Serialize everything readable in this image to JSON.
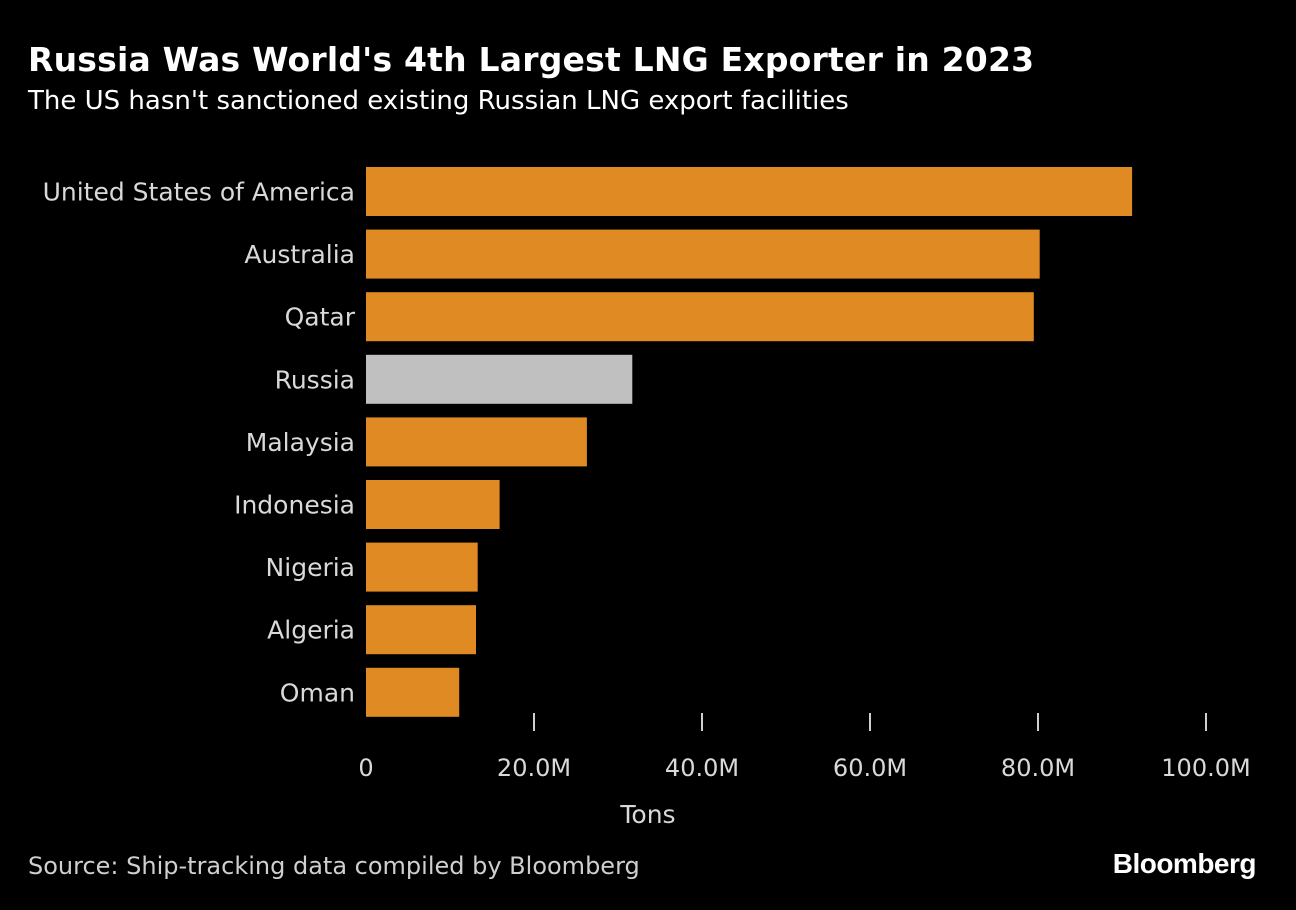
{
  "title": "Russia Was World's 4th Largest LNG Exporter in 2023",
  "subtitle": "The US hasn't sanctioned existing Russian LNG export facilities",
  "source": "Source: Ship-tracking data compiled by Bloomberg",
  "brand": "Bloomberg",
  "colors": {
    "background": "#000000",
    "bar": "#e08a23",
    "highlight": "#c0c0c0",
    "text": "#d9d9d9",
    "tick": "#cfcfcf"
  },
  "chart_data": {
    "type": "bar",
    "orientation": "horizontal",
    "categories": [
      "United States of America",
      "Australia",
      "Qatar",
      "Russia",
      "Malaysia",
      "Indonesia",
      "Nigeria",
      "Algeria",
      "Oman"
    ],
    "values": [
      91.2,
      80.2,
      79.5,
      31.7,
      26.3,
      15.9,
      13.3,
      13.1,
      11.1
    ],
    "unit": "M",
    "highlight_category": "Russia",
    "xlabel": "Tons",
    "ylabel": "",
    "xlim": [
      0,
      100
    ],
    "xticks": [
      0,
      20,
      40,
      60,
      80,
      100
    ],
    "xtick_labels": [
      "0",
      "20.0M",
      "40.0M",
      "60.0M",
      "80.0M",
      "100.0M"
    ],
    "grid": false,
    "legend": "none"
  }
}
